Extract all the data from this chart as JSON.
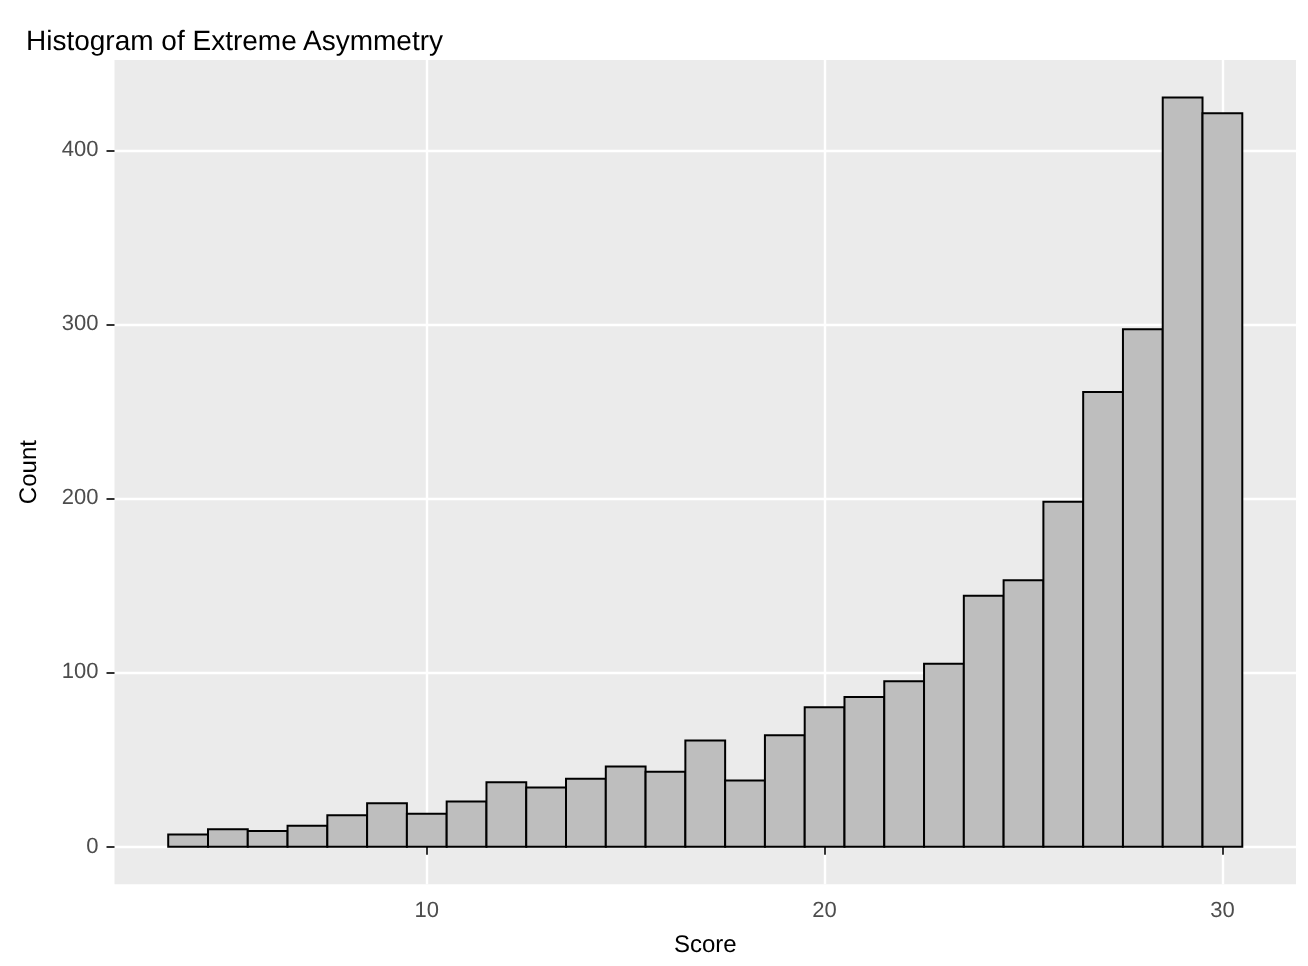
{
  "chart_data": {
    "type": "histogram",
    "title": "Histogram of Extreme Asymmetry",
    "xlabel": "Score",
    "ylabel": "Count",
    "bins": [
      3.5,
      4.5,
      5.5,
      6.5,
      7.5,
      8.5,
      9.5,
      10.5,
      11.5,
      12.5,
      13.5,
      14.5,
      15.5,
      16.5,
      17.5,
      18.5,
      19.5,
      20.5,
      21.5,
      22.5,
      23.5,
      24.5,
      25.5,
      26.5,
      27.5,
      28.5,
      29.5,
      30.5
    ],
    "values": [
      7,
      10,
      9,
      12,
      18,
      25,
      19,
      26,
      37,
      34,
      39,
      46,
      43,
      61,
      38,
      64,
      80,
      86,
      95,
      105,
      144,
      153,
      198,
      261,
      297,
      430,
      421
    ],
    "color": "#bebebe",
    "xlim": [
      2.15,
      31.85
    ],
    "xticks": [
      10,
      20,
      30
    ],
    "ylim": [
      -21.5,
      451.5
    ],
    "yticks": [
      0,
      100,
      200,
      300,
      400
    ],
    "grid": true
  }
}
